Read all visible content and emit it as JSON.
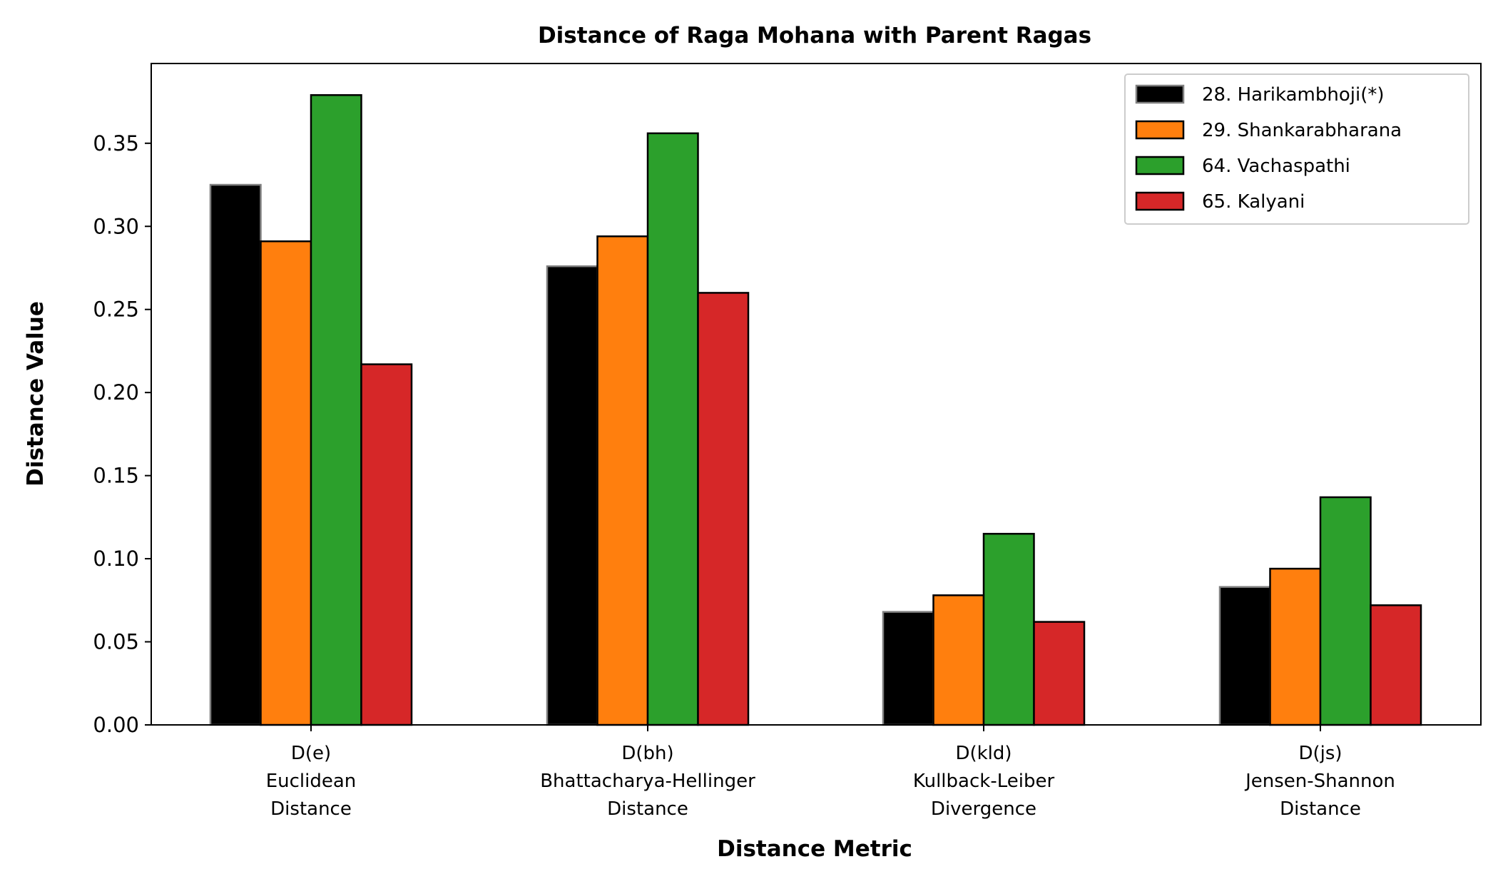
{
  "chart_data": {
    "type": "bar",
    "title": "Distance of Raga Mohana with Parent Ragas",
    "xlabel": "Distance Metric",
    "ylabel": "Distance Value",
    "ylim": [
      0,
      0.398
    ],
    "yticks": [
      "0.00",
      "0.05",
      "0.10",
      "0.15",
      "0.20",
      "0.25",
      "0.30",
      "0.35"
    ],
    "yticks_values": [
      0,
      0.05,
      0.1,
      0.15,
      0.2,
      0.25,
      0.3,
      0.35
    ],
    "categories": [
      [
        "D(e)",
        "Euclidean",
        "Distance"
      ],
      [
        "D(bh)",
        "Bhattacharya-Hellinger",
        "Distance"
      ],
      [
        "D(kld)",
        "Kullback-Leiber",
        "Divergence"
      ],
      [
        "D(js)",
        "Jensen-Shannon",
        "Distance"
      ]
    ],
    "series": [
      {
        "name": "28. Harikambhoji(*)",
        "color": "#000000",
        "edge": "#808080",
        "values": [
          0.325,
          0.276,
          0.068,
          0.083
        ]
      },
      {
        "name": "29. Shankarabharana",
        "color": "#ff7f0e",
        "edge": "#000000",
        "values": [
          0.291,
          0.294,
          0.078,
          0.094
        ]
      },
      {
        "name": "64. Vachaspathi",
        "color": "#2ca02c",
        "edge": "#000000",
        "values": [
          0.379,
          0.356,
          0.115,
          0.137
        ]
      },
      {
        "name": "65. Kalyani",
        "color": "#d62728",
        "edge": "#000000",
        "values": [
          0.217,
          0.26,
          0.062,
          0.072
        ]
      }
    ],
    "legend_position": "top-right",
    "grid": false
  }
}
